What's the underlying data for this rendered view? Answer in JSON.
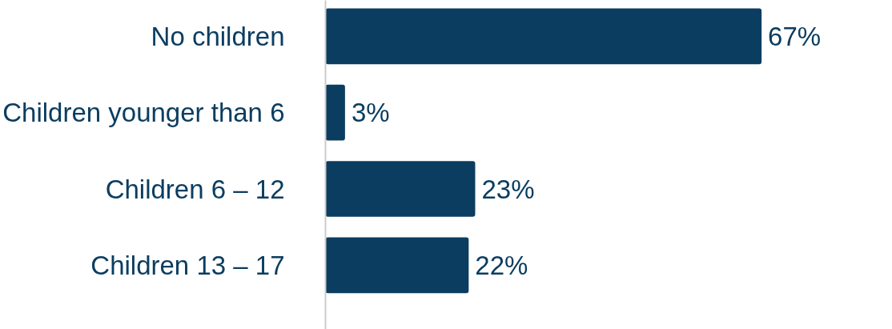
{
  "chart_data": {
    "type": "bar",
    "orientation": "horizontal",
    "categories": [
      "No children",
      "Children younger than 6",
      "Children 6 – 12",
      "Children 13 – 17"
    ],
    "values": [
      67,
      3,
      23,
      22
    ],
    "value_labels": [
      "67%",
      "3%",
      "23%",
      "22%"
    ],
    "color": "#0b3d60",
    "tick_labels": "y",
    "grid": false
  }
}
